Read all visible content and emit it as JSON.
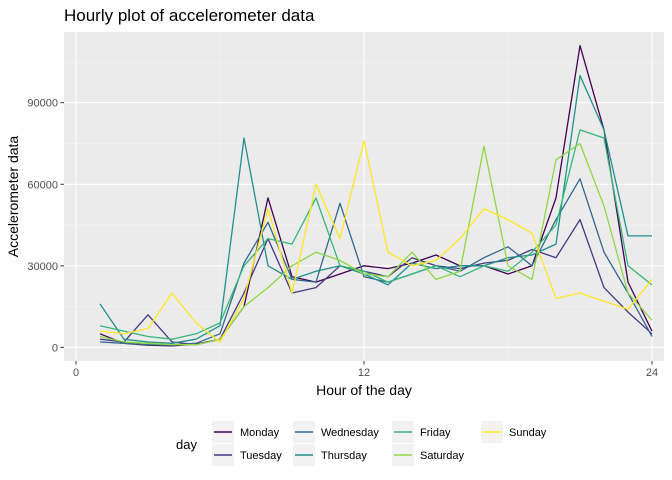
{
  "chart_data": {
    "type": "line",
    "title": "Hourly plot of accelerometer data",
    "xlabel": "Hour of the day",
    "ylabel": "Accelerometer data",
    "xlim": [
      -0.5,
      24.5
    ],
    "ylim": [
      -5000,
      116000
    ],
    "xticks": [
      0,
      12,
      24
    ],
    "yticks": [
      0,
      30000,
      60000,
      90000
    ],
    "xtick_labels": [
      "0",
      "12",
      "24"
    ],
    "ytick_labels": [
      "0",
      "30000",
      "60000",
      "90000"
    ],
    "grid": true,
    "legend_title": "day",
    "legend_position": "bottom",
    "series": [
      {
        "name": "Monday",
        "color": "#440154",
        "x": [
          1,
          2,
          3,
          4,
          5,
          6,
          7,
          8,
          9,
          10,
          11,
          12,
          13,
          14,
          15,
          16,
          17,
          18,
          19,
          20,
          21,
          22,
          23,
          24
        ],
        "values": [
          5000,
          1500,
          800,
          600,
          1200,
          3000,
          15000,
          55000,
          26000,
          24000,
          27000,
          30000,
          29000,
          31000,
          34000,
          30000,
          30000,
          27000,
          30000,
          55000,
          111000,
          80000,
          24000,
          6000
        ]
      },
      {
        "name": "Tuesday",
        "color": "#443a83",
        "x": [
          1,
          2,
          3,
          4,
          5,
          6,
          7,
          8,
          9,
          10,
          11,
          12,
          13,
          14,
          15,
          16,
          17,
          18,
          19,
          20,
          21,
          22,
          23,
          24
        ],
        "values": [
          3000,
          2000,
          12000,
          2000,
          1000,
          3000,
          20000,
          40000,
          20000,
          22000,
          30000,
          28000,
          26000,
          33000,
          30000,
          29000,
          31000,
          32000,
          36000,
          33000,
          47000,
          22000,
          13000,
          5000
        ]
      },
      {
        "name": "Wednesday",
        "color": "#31688e",
        "x": [
          1,
          2,
          3,
          4,
          5,
          6,
          7,
          8,
          9,
          10,
          11,
          12,
          13,
          14,
          15,
          16,
          17,
          18,
          19,
          20,
          21,
          22,
          23,
          24
        ],
        "values": [
          2000,
          1500,
          1000,
          800,
          1500,
          5000,
          31000,
          46000,
          25000,
          24000,
          53000,
          26000,
          24000,
          27000,
          30000,
          28000,
          33000,
          37000,
          30000,
          47000,
          62000,
          35000,
          20000,
          4000
        ]
      },
      {
        "name": "Thursday",
        "color": "#21908d",
        "x": [
          1,
          2,
          3,
          4,
          5,
          6,
          7,
          8,
          9,
          10,
          11,
          12,
          13,
          14,
          15,
          16,
          17,
          18,
          19,
          20,
          21,
          22,
          23,
          24
        ],
        "values": [
          16000,
          3000,
          2000,
          1500,
          3000,
          8000,
          77000,
          30000,
          25000,
          28000,
          30000,
          27000,
          23000,
          31000,
          29000,
          30000,
          30000,
          33000,
          34000,
          38000,
          100000,
          80000,
          41000,
          41000
        ]
      },
      {
        "name": "Friday",
        "color": "#35b779",
        "x": [
          1,
          2,
          3,
          4,
          5,
          6,
          7,
          8,
          9,
          10,
          11,
          12,
          13,
          14,
          15,
          16,
          17,
          18,
          19,
          20,
          21,
          22,
          23,
          24
        ],
        "values": [
          8000,
          6000,
          4000,
          3000,
          5000,
          9000,
          30000,
          40000,
          38000,
          55000,
          30000,
          28000,
          24000,
          27000,
          30000,
          26000,
          30000,
          28000,
          35000,
          45000,
          80000,
          77000,
          30000,
          23000
        ]
      },
      {
        "name": "Saturday",
        "color": "#8fd744",
        "x": [
          1,
          2,
          3,
          4,
          5,
          6,
          7,
          8,
          9,
          10,
          11,
          12,
          13,
          14,
          15,
          16,
          17,
          18,
          19,
          20,
          21,
          22,
          23,
          24
        ],
        "values": [
          4000,
          2000,
          1500,
          1000,
          1000,
          3000,
          15000,
          22000,
          30000,
          35000,
          32000,
          27000,
          26000,
          35000,
          25000,
          28000,
          74000,
          30000,
          25000,
          69000,
          75000,
          52000,
          20000,
          10000
        ]
      },
      {
        "name": "Sunday",
        "color": "#fde725",
        "x": [
          1,
          2,
          3,
          4,
          5,
          6,
          7,
          8,
          9,
          10,
          11,
          12,
          13,
          14,
          15,
          16,
          17,
          18,
          19,
          20,
          21,
          22,
          23,
          24
        ],
        "values": [
          6000,
          5000,
          7000,
          20000,
          9000,
          2000,
          18000,
          51000,
          20000,
          60000,
          40000,
          76000,
          35000,
          30000,
          32000,
          40000,
          51000,
          47000,
          42000,
          18000,
          20000,
          17000,
          14000,
          25000
        ]
      }
    ]
  }
}
